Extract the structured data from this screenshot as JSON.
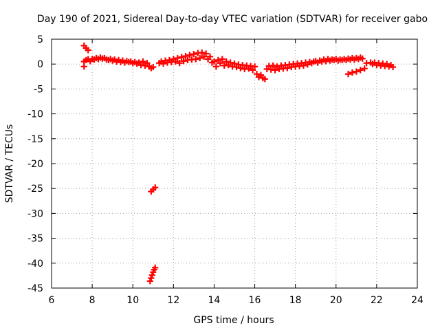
{
  "chart_data": {
    "type": "scatter",
    "title": "Day 190 of 2021, Sidereal Day-to-day VTEC variation (SDTVAR) for receiver gabo",
    "xlabel": "GPS time / hours",
    "ylabel": "SDTVAR / TECUs",
    "xlim": [
      6,
      24
    ],
    "ylim": [
      -45,
      5
    ],
    "xticks": [
      6,
      8,
      10,
      12,
      14,
      16,
      18,
      20,
      22,
      24
    ],
    "yticks": [
      5,
      0,
      -5,
      -10,
      -15,
      -20,
      -25,
      -30,
      -35,
      -40,
      -45
    ],
    "xtick_labels": [
      "6",
      "8",
      "10",
      "12",
      "14",
      "16",
      "18",
      "20",
      "22",
      "24"
    ],
    "ytick_labels": [
      "5",
      "0",
      "-5",
      "-10",
      "-15",
      "-20",
      "-25",
      "-30",
      "-35",
      "-40",
      "-45"
    ],
    "grid": true,
    "series": [
      {
        "name": "SDTVAR",
        "color": "#ff0000",
        "points": [
          [
            7.6,
            3.7
          ],
          [
            7.7,
            3.2
          ],
          [
            7.8,
            2.8
          ],
          [
            7.6,
            -0.5
          ],
          [
            7.6,
            0.5
          ],
          [
            7.7,
            0.8
          ],
          [
            7.8,
            1.0
          ],
          [
            7.9,
            0.6
          ],
          [
            8.0,
            1.0
          ],
          [
            8.1,
            0.9
          ],
          [
            8.2,
            1.2
          ],
          [
            8.3,
            1.0
          ],
          [
            8.4,
            1.3
          ],
          [
            8.5,
            1.1
          ],
          [
            8.6,
            1.2
          ],
          [
            8.7,
            0.9
          ],
          [
            8.8,
            0.8
          ],
          [
            8.9,
            1.0
          ],
          [
            9.0,
            0.7
          ],
          [
            9.1,
            0.9
          ],
          [
            9.2,
            0.5
          ],
          [
            9.3,
            0.8
          ],
          [
            9.4,
            0.4
          ],
          [
            9.5,
            0.7
          ],
          [
            9.6,
            0.3
          ],
          [
            9.7,
            0.6
          ],
          [
            9.8,
            0.4
          ],
          [
            9.9,
            0.5
          ],
          [
            10.0,
            0.2
          ],
          [
            10.1,
            0.4
          ],
          [
            10.2,
            0.1
          ],
          [
            10.3,
            0.3
          ],
          [
            10.4,
            -0.2
          ],
          [
            10.5,
            0.5
          ],
          [
            10.6,
            -0.3
          ],
          [
            10.7,
            0.2
          ],
          [
            10.8,
            -0.5
          ],
          [
            10.9,
            -0.8
          ],
          [
            11.0,
            -0.6
          ],
          [
            11.3,
            0.2
          ],
          [
            11.4,
            0.5
          ],
          [
            11.5,
            0.1
          ],
          [
            11.6,
            0.7
          ],
          [
            11.7,
            0.3
          ],
          [
            11.8,
            0.8
          ],
          [
            11.9,
            0.4
          ],
          [
            12.0,
            1.0
          ],
          [
            12.1,
            0.5
          ],
          [
            12.2,
            1.2
          ],
          [
            12.3,
            0.2
          ],
          [
            12.4,
            1.4
          ],
          [
            12.5,
            0.6
          ],
          [
            12.6,
            1.6
          ],
          [
            12.7,
            0.8
          ],
          [
            12.8,
            1.8
          ],
          [
            12.9,
            0.9
          ],
          [
            13.0,
            2.0
          ],
          [
            13.1,
            1.0
          ],
          [
            13.2,
            2.2
          ],
          [
            13.3,
            1.2
          ],
          [
            13.4,
            2.3
          ],
          [
            13.5,
            1.5
          ],
          [
            13.6,
            2.1
          ],
          [
            13.7,
            1.0
          ],
          [
            13.8,
            1.5
          ],
          [
            13.9,
            0.3
          ],
          [
            14.0,
            0.5
          ],
          [
            14.1,
            -0.5
          ],
          [
            14.2,
            0.8
          ],
          [
            14.3,
            0.2
          ],
          [
            14.4,
            1.0
          ],
          [
            14.5,
            -0.3
          ],
          [
            14.6,
            0.5
          ],
          [
            14.7,
            -0.2
          ],
          [
            14.8,
            0.3
          ],
          [
            14.9,
            -0.5
          ],
          [
            15.0,
            0.1
          ],
          [
            15.1,
            -0.6
          ],
          [
            15.2,
            -0.1
          ],
          [
            15.3,
            -0.8
          ],
          [
            15.4,
            -0.2
          ],
          [
            15.5,
            -1.0
          ],
          [
            15.6,
            -0.3
          ],
          [
            15.7,
            -0.9
          ],
          [
            15.8,
            -0.4
          ],
          [
            15.9,
            -1.2
          ],
          [
            16.0,
            -0.5
          ],
          [
            16.1,
            -2.0
          ],
          [
            16.2,
            -2.6
          ],
          [
            16.3,
            -2.2
          ],
          [
            16.4,
            -2.8
          ],
          [
            16.5,
            -3.0
          ],
          [
            16.6,
            -1.0
          ],
          [
            16.7,
            -0.4
          ],
          [
            16.8,
            -1.1
          ],
          [
            16.9,
            -0.3
          ],
          [
            17.0,
            -1.2
          ],
          [
            17.1,
            -0.5
          ],
          [
            17.2,
            -1.0
          ],
          [
            17.3,
            -0.3
          ],
          [
            17.4,
            -0.9
          ],
          [
            17.5,
            -0.2
          ],
          [
            17.6,
            -0.8
          ],
          [
            17.7,
            -0.1
          ],
          [
            17.8,
            -0.6
          ],
          [
            17.9,
            0.0
          ],
          [
            18.0,
            -0.5
          ],
          [
            18.1,
            0.1
          ],
          [
            18.2,
            -0.4
          ],
          [
            18.3,
            0.2
          ],
          [
            18.4,
            -0.3
          ],
          [
            18.5,
            0.3
          ],
          [
            18.6,
            -0.1
          ],
          [
            18.7,
            0.4
          ],
          [
            18.8,
            0.2
          ],
          [
            18.9,
            0.5
          ],
          [
            19.0,
            0.6
          ],
          [
            19.1,
            0.3
          ],
          [
            19.2,
            0.7
          ],
          [
            19.3,
            0.5
          ],
          [
            19.4,
            0.9
          ],
          [
            19.5,
            0.6
          ],
          [
            19.6,
            1.0
          ],
          [
            19.7,
            0.7
          ],
          [
            19.8,
            0.9
          ],
          [
            19.9,
            0.8
          ],
          [
            20.0,
            1.0
          ],
          [
            20.1,
            0.7
          ],
          [
            20.2,
            0.9
          ],
          [
            20.3,
            0.8
          ],
          [
            20.4,
            1.0
          ],
          [
            20.5,
            0.8
          ],
          [
            20.6,
            1.1
          ],
          [
            20.7,
            0.9
          ],
          [
            20.8,
            1.2
          ],
          [
            20.9,
            0.9
          ],
          [
            21.0,
            1.2
          ],
          [
            21.1,
            1.0
          ],
          [
            21.2,
            1.3
          ],
          [
            21.3,
            1.1
          ],
          [
            20.6,
            -2.0
          ],
          [
            20.8,
            -1.7
          ],
          [
            21.0,
            -1.5
          ],
          [
            21.2,
            -1.2
          ],
          [
            21.4,
            -0.9
          ],
          [
            21.5,
            0.2
          ],
          [
            21.7,
            0.3
          ],
          [
            21.8,
            0.0
          ],
          [
            21.9,
            0.3
          ],
          [
            22.0,
            -0.2
          ],
          [
            22.1,
            0.2
          ],
          [
            22.2,
            -0.3
          ],
          [
            22.3,
            0.1
          ],
          [
            22.4,
            -0.4
          ],
          [
            22.5,
            0.0
          ],
          [
            22.6,
            -0.5
          ],
          [
            22.7,
            -0.2
          ],
          [
            22.8,
            -0.6
          ],
          [
            10.9,
            -25.6
          ],
          [
            11.0,
            -25.2
          ],
          [
            11.1,
            -24.8
          ],
          [
            10.85,
            -43.6
          ],
          [
            10.9,
            -43.0
          ],
          [
            10.95,
            -42.4
          ],
          [
            11.0,
            -41.8
          ],
          [
            11.05,
            -41.3
          ],
          [
            11.1,
            -40.9
          ]
        ]
      }
    ]
  }
}
